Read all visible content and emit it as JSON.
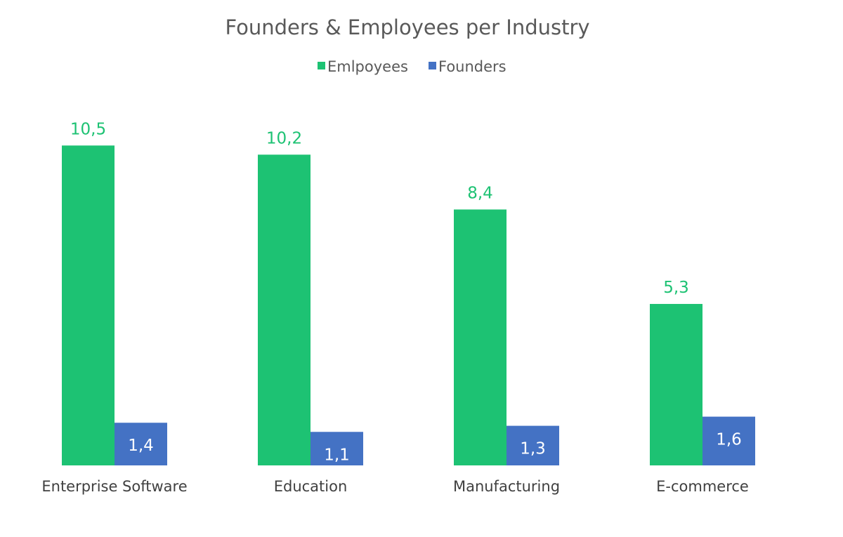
{
  "chart_data": {
    "type": "bar",
    "title": "Founders & Employees per Industry",
    "categories": [
      "Enterprise Software",
      "Education",
      "Manufacturing",
      "E-commerce"
    ],
    "series": [
      {
        "name": "Emlpoyees",
        "color": "#1DC273",
        "values": [
          10.5,
          10.2,
          8.4,
          5.3
        ],
        "labels": [
          "10,5",
          "10,2",
          "8,4",
          "5,3"
        ],
        "label_position": "outside-end"
      },
      {
        "name": "Founders",
        "color": "#4472C4",
        "values": [
          1.4,
          1.1,
          1.3,
          1.6
        ],
        "labels": [
          "1,4",
          "1,1",
          "1,3",
          "1,6"
        ],
        "label_position": "inside-end"
      }
    ],
    "xlabel": "",
    "ylabel": "",
    "ylim": [
      0,
      12
    ],
    "grid": false,
    "legend": "top-center"
  }
}
